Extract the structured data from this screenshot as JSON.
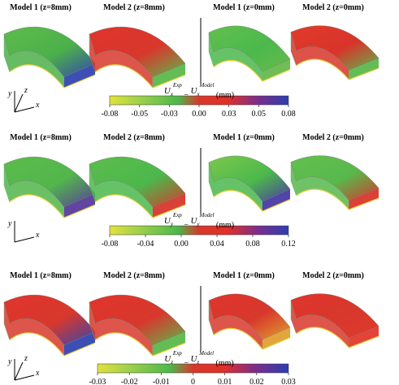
{
  "panels": [
    {
      "models": [
        "Model 1 (z=8mm)",
        "Model 2 (z=8mm)",
        "Model 1 (z=0mm)",
        "Model 2 (z=0mm)"
      ],
      "axes": {
        "y": "y",
        "z": "z",
        "x": "x"
      },
      "colorbar": {
        "label": {
          "symbol": "U",
          "sub1": "x",
          "sup1": "Exp",
          "minus": " − ",
          "sub2": "x",
          "sup2": "Model",
          "unit": " (mm)"
        },
        "lim": [
          -0.08,
          0.08
        ],
        "ticks": [
          -0.08,
          {
            "value": -0.0533,
            "label": "-0.05"
          },
          {
            "value": -0.0267,
            "label": "-0.03"
          },
          {
            "value": 0,
            "label": "0.00"
          },
          {
            "value": 0.0267,
            "label": "0.03"
          },
          {
            "value": 0.0533,
            "label": "0.05"
          },
          0.08
        ]
      }
    },
    {
      "models": [
        "Model 1 (z=8mm)",
        "Model 2 (z=8mm)",
        "Model 1 (z=0mm)",
        "Model 2 (z=0mm)"
      ],
      "axes": {
        "y": "y",
        "x": "x"
      },
      "colorbar": {
        "label": {
          "symbol": "U",
          "sub1": "y",
          "sup1": "Exp",
          "minus": " − ",
          "sub2": "y",
          "sup2": "Model",
          "unit": " (mm)"
        },
        "lim": [
          -0.08,
          0.12
        ],
        "ticks": [
          -0.08,
          -0.04,
          {
            "value": 0,
            "label": "0.00"
          },
          0.04,
          0.08,
          0.12
        ]
      }
    },
    {
      "models": [
        "Model 1 (z=8mm)",
        "Model 2 (z=8mm)",
        "Model 1 (z=0mm)",
        "Model 2 (z=0mm)"
      ],
      "axes": {
        "y": "y",
        "z": "z",
        "x": "x"
      },
      "colorbar": {
        "label": {
          "symbol": "U",
          "sub1": "z",
          "sup1": "Exp",
          "minus": " − ",
          "sub2": "z",
          "sup2": "Model",
          "unit": " (mm)"
        },
        "lim": [
          -0.03,
          0.03
        ],
        "ticks": [
          -0.03,
          -0.02,
          -0.01,
          0,
          0.01,
          0.02,
          0.03
        ]
      }
    }
  ]
}
